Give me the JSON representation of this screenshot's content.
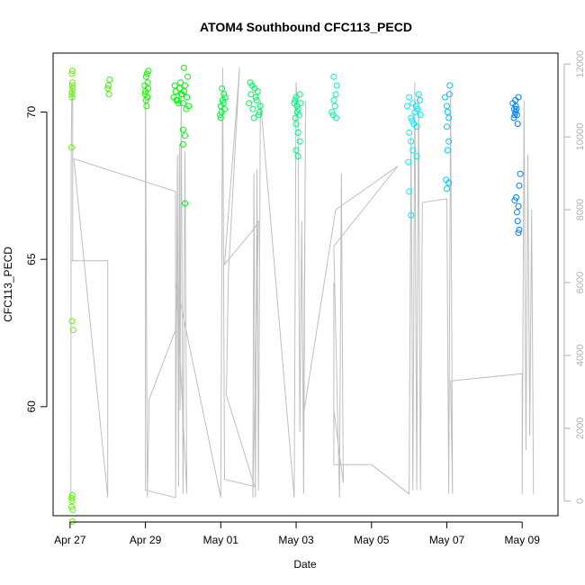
{
  "chart_data": {
    "type": "scatter",
    "title": "ATOM4 Southbound CFC113_PECD",
    "xlabel": "Date",
    "ylabel": "CFC113_PECD",
    "x_ticks": [
      "Apr 27",
      "Apr 29",
      "May 01",
      "May 03",
      "May 05",
      "May 07",
      "May 09"
    ],
    "y_left_ticks": [
      "60",
      "65",
      "70"
    ],
    "y_left_lim": [
      56.3,
      72.0
    ],
    "y_right_ticks": [
      "0",
      "2000",
      "4000",
      "6000",
      "8000",
      "10000",
      "12000"
    ],
    "y_right_lim": [
      -400,
      12300
    ],
    "x_lim": [
      -0.45,
      12.95
    ],
    "legend": "none",
    "grid": false,
    "series": [
      {
        "type": "scatter",
        "color_scale": "rainbow",
        "points": [
          [
            0.05,
            70.5
          ],
          [
            0.05,
            71.3
          ],
          [
            0.06,
            70.9
          ],
          [
            0.05,
            70.7
          ],
          [
            0.06,
            71.0
          ],
          [
            0.05,
            70.6
          ],
          [
            0.07,
            70.8
          ],
          [
            0.06,
            71.4
          ],
          [
            0.04,
            68.8
          ],
          [
            0.05,
            62.9
          ],
          [
            0.08,
            62.6
          ],
          [
            0.04,
            56.9
          ],
          [
            0.06,
            57.0
          ],
          [
            0.05,
            56.8
          ],
          [
            0.07,
            56.5
          ],
          [
            0.04,
            56.6
          ],
          [
            0.06,
            56.1
          ],
          [
            1.0,
            70.8
          ],
          [
            1.05,
            71.1
          ],
          [
            1.03,
            70.6
          ],
          [
            1.02,
            70.9
          ],
          [
            2.0,
            70.7
          ],
          [
            2.02,
            71.2
          ],
          [
            2.05,
            70.5
          ],
          [
            2.06,
            71.0
          ],
          [
            1.98,
            70.9
          ],
          [
            2.01,
            70.4
          ],
          [
            2.04,
            71.3
          ],
          [
            2.07,
            70.8
          ],
          [
            2.03,
            70.2
          ],
          [
            2.08,
            71.4
          ],
          [
            1.99,
            70.6
          ],
          [
            2.75,
            70.5
          ],
          [
            2.8,
            70.7
          ],
          [
            2.85,
            70.4
          ],
          [
            2.9,
            70.8
          ],
          [
            2.95,
            70.6
          ],
          [
            3.0,
            70.3
          ],
          [
            3.05,
            70.9
          ],
          [
            3.1,
            70.5
          ],
          [
            3.15,
            70.2
          ],
          [
            2.78,
            70.9
          ],
          [
            2.88,
            70.3
          ],
          [
            2.93,
            71.0
          ],
          [
            3.03,
            70.7
          ],
          [
            3.08,
            70.1
          ],
          [
            3.12,
            71.2
          ],
          [
            3.02,
            71.5
          ],
          [
            3.0,
            69.4
          ],
          [
            3.05,
            69.2
          ],
          [
            3.0,
            68.9
          ],
          [
            3.05,
            66.9
          ],
          [
            2.82,
            70.4
          ],
          [
            2.97,
            70.6
          ],
          [
            4.0,
            70.2
          ],
          [
            4.05,
            70.4
          ],
          [
            4.02,
            70.0
          ],
          [
            4.08,
            70.6
          ],
          [
            3.98,
            69.9
          ],
          [
            4.03,
            70.8
          ],
          [
            4.07,
            70.3
          ],
          [
            4.1,
            70.1
          ],
          [
            4.0,
            69.8
          ],
          [
            4.12,
            70.5
          ],
          [
            4.75,
            70.3
          ],
          [
            4.8,
            70.6
          ],
          [
            4.85,
            70.1
          ],
          [
            4.9,
            70.8
          ],
          [
            4.95,
            70.4
          ],
          [
            5.0,
            69.9
          ],
          [
            5.05,
            70.2
          ],
          [
            4.78,
            71.0
          ],
          [
            4.88,
            69.8
          ],
          [
            4.93,
            70.5
          ],
          [
            5.03,
            70.0
          ],
          [
            4.83,
            70.9
          ],
          [
            4.98,
            70.7
          ],
          [
            5.95,
            70.3
          ],
          [
            6.0,
            70.5
          ],
          [
            6.05,
            70.1
          ],
          [
            6.1,
            70.6
          ],
          [
            5.98,
            69.8
          ],
          [
            6.02,
            70.2
          ],
          [
            6.08,
            69.9
          ],
          [
            6.0,
            69.6
          ],
          [
            6.05,
            69.3
          ],
          [
            6.1,
            69.0
          ],
          [
            6.0,
            68.7
          ],
          [
            6.05,
            68.5
          ],
          [
            6.03,
            70.0
          ],
          [
            5.97,
            70.4
          ],
          [
            6.12,
            70.3
          ],
          [
            6.95,
            70.0
          ],
          [
            7.0,
            70.4
          ],
          [
            7.05,
            70.6
          ],
          [
            7.08,
            70.9
          ],
          [
            7.0,
            71.2
          ],
          [
            6.98,
            69.9
          ],
          [
            7.03,
            70.2
          ],
          [
            7.06,
            69.8
          ],
          [
            8.95,
            70.2
          ],
          [
            9.0,
            70.5
          ],
          [
            9.05,
            69.8
          ],
          [
            9.1,
            70.3
          ],
          [
            9.15,
            70.0
          ],
          [
            9.2,
            69.5
          ],
          [
            9.25,
            70.6
          ],
          [
            9.3,
            69.9
          ],
          [
            9.0,
            69.3
          ],
          [
            9.05,
            69.0
          ],
          [
            9.1,
            68.7
          ],
          [
            8.98,
            68.3
          ],
          [
            9.2,
            68.5
          ],
          [
            9.0,
            67.3
          ],
          [
            9.05,
            66.5
          ],
          [
            9.12,
            69.6
          ],
          [
            9.22,
            70.1
          ],
          [
            9.28,
            70.4
          ],
          [
            9.18,
            70.2
          ],
          [
            9.08,
            69.7
          ],
          [
            9.95,
            70.5
          ],
          [
            10.0,
            70.2
          ],
          [
            10.05,
            69.8
          ],
          [
            10.08,
            70.9
          ],
          [
            10.0,
            69.5
          ],
          [
            10.05,
            69.0
          ],
          [
            10.02,
            68.7
          ],
          [
            9.98,
            67.7
          ],
          [
            10.0,
            67.4
          ],
          [
            10.05,
            67.6
          ],
          [
            10.02,
            70.0
          ],
          [
            10.07,
            70.6
          ],
          [
            11.75,
            70.3
          ],
          [
            11.8,
            69.9
          ],
          [
            11.85,
            70.1
          ],
          [
            11.9,
            70.5
          ],
          [
            11.78,
            69.8
          ],
          [
            11.83,
            70.2
          ],
          [
            11.88,
            69.6
          ],
          [
            11.82,
            70.0
          ],
          [
            11.86,
            69.9
          ],
          [
            11.79,
            70.1
          ],
          [
            11.84,
            67.1
          ],
          [
            11.8,
            67.0
          ],
          [
            11.9,
            66.8
          ],
          [
            11.86,
            66.6
          ],
          [
            11.95,
            67.9
          ],
          [
            11.92,
            67.5
          ],
          [
            11.88,
            66.3
          ],
          [
            11.92,
            66.0
          ],
          [
            11.9,
            65.9
          ],
          [
            11.82,
            70.4
          ]
        ]
      },
      {
        "type": "line",
        "axis": "right",
        "color": "#bebebe",
        "points": [
          [
            0.02,
            0
          ],
          [
            0.03,
            9500
          ],
          [
            0.05,
            11400
          ],
          [
            0.07,
            11200
          ],
          [
            0.07,
            6600
          ],
          [
            0.02,
            6600
          ],
          [
            0.05,
            6600
          ],
          [
            1.0,
            6600
          ],
          [
            1.0,
            100
          ],
          [
            0.1,
            9400
          ],
          [
            2.8,
            8500
          ],
          [
            2.8,
            100
          ],
          [
            2.0,
            300
          ],
          [
            2.0,
            11500
          ],
          [
            2.05,
            100
          ],
          [
            2.1,
            2800
          ],
          [
            2.8,
            4700
          ],
          [
            2.8,
            300
          ],
          [
            2.85,
            9500
          ],
          [
            2.88,
            400
          ],
          [
            2.9,
            9800
          ],
          [
            2.92,
            2500
          ],
          [
            2.95,
            11200
          ],
          [
            3.0,
            200
          ],
          [
            3.05,
            9600
          ],
          [
            3.1,
            200
          ],
          [
            2.82,
            6000
          ],
          [
            4.0,
            100
          ],
          [
            4.05,
            11900
          ],
          [
            4.1,
            600
          ],
          [
            4.9,
            400
          ],
          [
            4.15,
            2900
          ],
          [
            4.2,
            6200
          ],
          [
            4.4,
            10000
          ],
          [
            4.5,
            11900
          ],
          [
            4.1,
            6500
          ],
          [
            4.9,
            7500
          ],
          [
            5.0,
            7700
          ],
          [
            4.85,
            100
          ],
          [
            4.88,
            9000
          ],
          [
            4.92,
            100
          ],
          [
            4.96,
            9100
          ],
          [
            5.0,
            300
          ],
          [
            5.05,
            11000
          ],
          [
            5.95,
            100
          ],
          [
            6.0,
            11500
          ],
          [
            6.05,
            10500
          ],
          [
            6.1,
            1900
          ],
          [
            6.15,
            7700
          ],
          [
            6.2,
            200
          ],
          [
            6.25,
            11000
          ],
          [
            6.2,
            2400
          ],
          [
            7.05,
            8000
          ],
          [
            8.7,
            9200
          ],
          [
            7.0,
            7000
          ],
          [
            7.15,
            100
          ],
          [
            7.2,
            9000
          ],
          [
            7.25,
            500
          ],
          [
            7.0,
            2500
          ],
          [
            7.0,
            6000
          ],
          [
            7.0,
            1000
          ],
          [
            8.0,
            1000
          ],
          [
            9.0,
            200
          ],
          [
            9.05,
            10000
          ],
          [
            9.1,
            300
          ],
          [
            9.15,
            11500
          ],
          [
            9.2,
            300
          ],
          [
            9.25,
            11200
          ],
          [
            9.3,
            300
          ],
          [
            9.35,
            8200
          ],
          [
            10.0,
            8300
          ],
          [
            10.05,
            200
          ],
          [
            10.1,
            11300
          ],
          [
            10.15,
            200
          ],
          [
            10.1,
            3300
          ],
          [
            12.0,
            3500
          ],
          [
            12.0,
            200
          ],
          [
            12.05,
            11000
          ],
          [
            12.1,
            1400
          ],
          [
            12.15,
            9500
          ],
          [
            12.2,
            1800
          ],
          [
            12.25,
            8000
          ],
          [
            12.3,
            200
          ]
        ]
      }
    ]
  }
}
